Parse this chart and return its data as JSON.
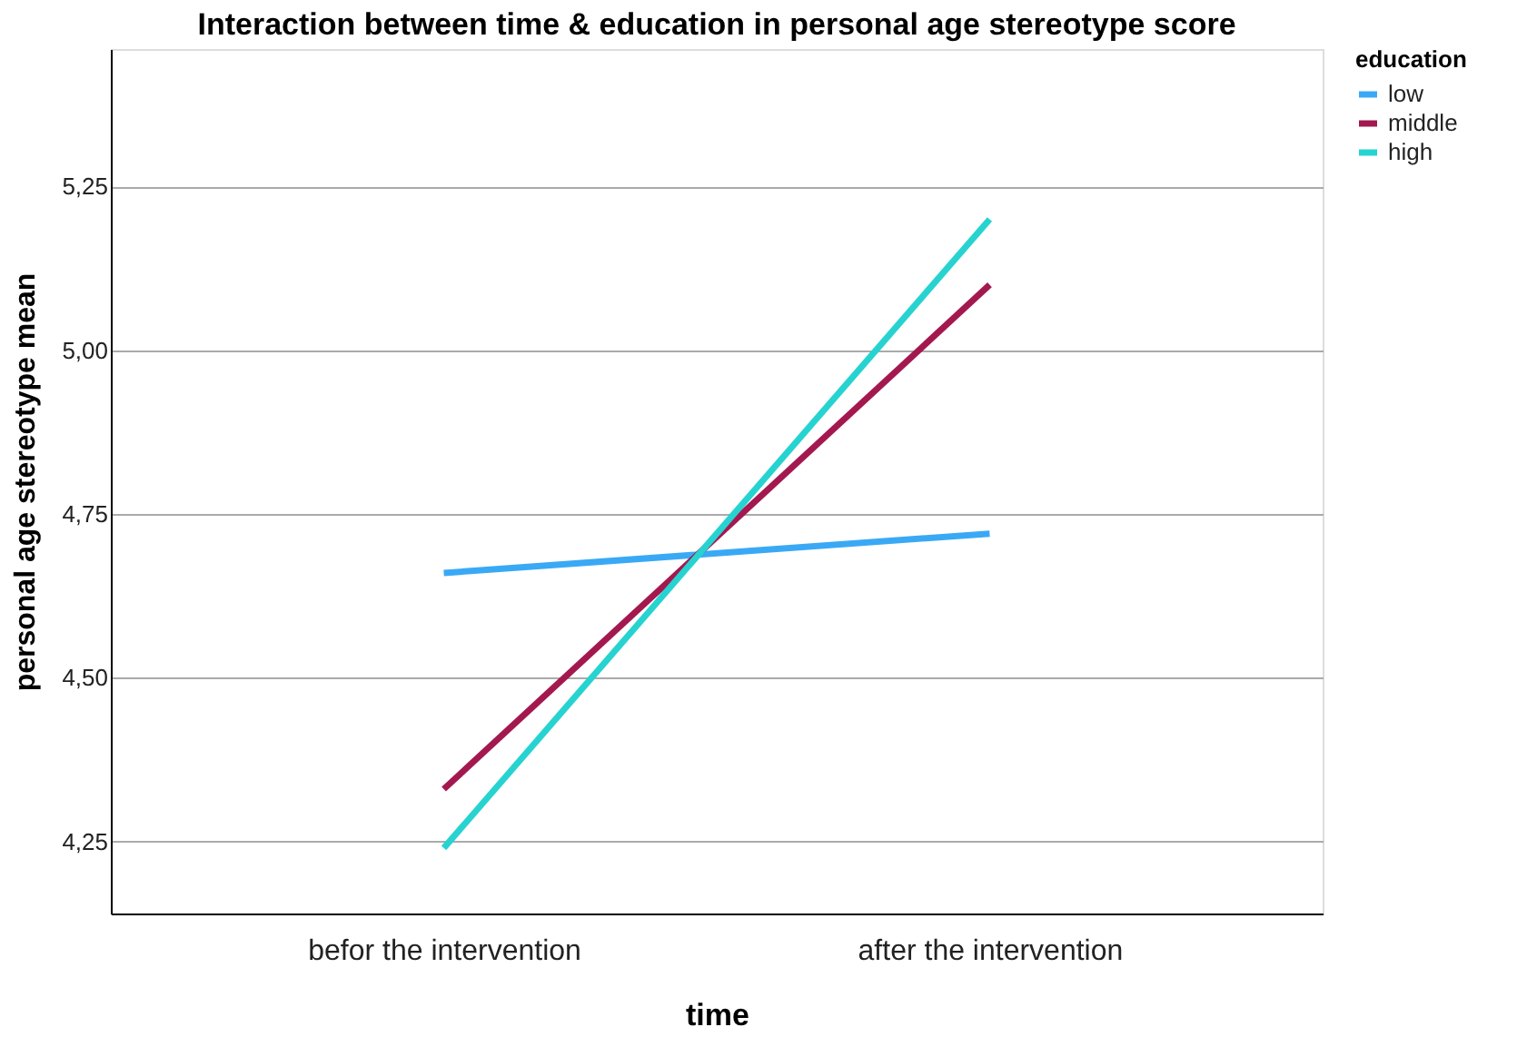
{
  "chart_data": {
    "type": "line",
    "title": "Interaction between time & education in personal age stereotype score",
    "xlabel": "time",
    "ylabel": "personal age stereotype mean",
    "legend_title": "education",
    "categories": [
      "befor the intervention",
      "after the intervention"
    ],
    "series": [
      {
        "name": "low",
        "color": "#3aa9f5",
        "values": [
          4.66,
          4.72
        ]
      },
      {
        "name": "middle",
        "color": "#a3194f",
        "values": [
          4.33,
          5.1
        ]
      },
      {
        "name": "high",
        "color": "#27d3d0",
        "values": [
          4.24,
          5.2
        ]
      }
    ],
    "ylim": [
      4.14,
      5.46
    ],
    "yticks": [
      {
        "value": 4.25,
        "label": "4,25"
      },
      {
        "value": 4.5,
        "label": "4,50"
      },
      {
        "value": 4.75,
        "label": "4,75"
      },
      {
        "value": 5.0,
        "label": "5,00"
      },
      {
        "value": 5.25,
        "label": "5,25"
      }
    ],
    "grid": "y",
    "legend": "top right",
    "marker": "none",
    "line_style": "solid"
  }
}
